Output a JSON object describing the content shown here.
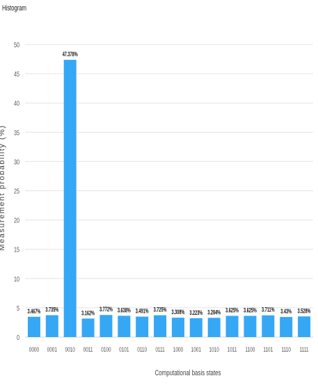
{
  "panel_title": "Histogram",
  "chart_data": {
    "type": "bar",
    "xlabel": "Computational basis states",
    "ylabel": "Measurement probability (%)",
    "ylim": [
      0,
      50
    ],
    "yticks": [
      0,
      5,
      10,
      15,
      20,
      25,
      30,
      35,
      40,
      45,
      50
    ],
    "grid": true,
    "bar_color": "#35a7f5",
    "categories": [
      "0000",
      "0001",
      "0010",
      "0011",
      "0100",
      "0101",
      "0110",
      "0111",
      "1000",
      "1001",
      "1010",
      "1011",
      "1100",
      "1101",
      "1110",
      "1111"
    ],
    "values": [
      3.467,
      3.735,
      47.378,
      3.162,
      3.772,
      3.638,
      3.491,
      3.725,
      3.308,
      3.223,
      3.284,
      3.625,
      3.625,
      3.711,
      3.43,
      3.528
    ],
    "data_labels": [
      "3.467%",
      "3.735%",
      "47.378%",
      "3.162%",
      "3.772%",
      "3.638%",
      "3.491%",
      "3.725%",
      "3.308%",
      "3.223%",
      "3.284%",
      "3.625%",
      "3.625%",
      "3.711%",
      "3.43%",
      "3.528%"
    ]
  }
}
